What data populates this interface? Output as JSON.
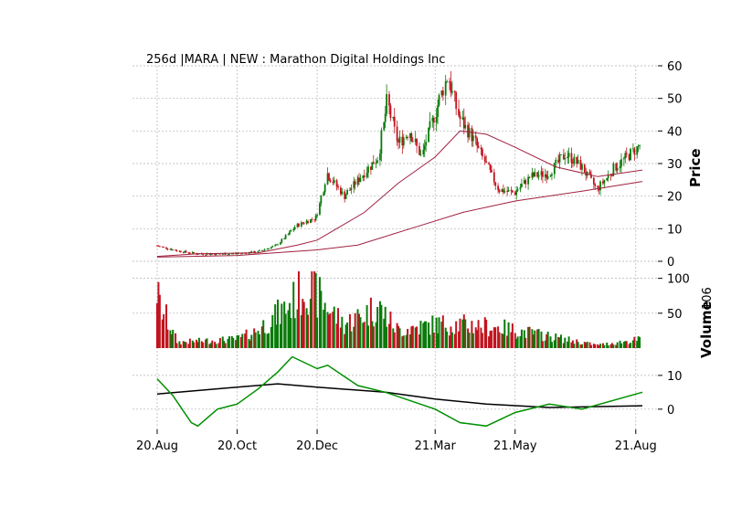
{
  "chart_data": {
    "type": "candlestick",
    "title": "256d |MARA | NEW : Marathon Digital Holdings Inc",
    "price_panel": {
      "ylabel": "Price",
      "ylim": [
        0,
        60
      ],
      "yticks": [
        "0",
        "10",
        "20",
        "30",
        "40",
        "50",
        "60"
      ],
      "ohlc_close_trace": [
        {
          "date": "2020-08-20",
          "close": 4.8
        },
        {
          "date": "2020-09-05",
          "close": 3.2
        },
        {
          "date": "2020-09-20",
          "close": 2.3
        },
        {
          "date": "2020-10-05",
          "close": 2.2
        },
        {
          "date": "2020-10-20",
          "close": 2.4
        },
        {
          "date": "2020-11-05",
          "close": 2.9
        },
        {
          "date": "2020-11-20",
          "close": 5.0
        },
        {
          "date": "2020-12-05",
          "close": 11.0
        },
        {
          "date": "2020-12-20",
          "close": 13.5
        },
        {
          "date": "2020-12-28",
          "close": 27.0
        },
        {
          "date": "2021-01-10",
          "close": 20.0
        },
        {
          "date": "2021-01-25",
          "close": 27.0
        },
        {
          "date": "2021-02-05",
          "close": 32.0
        },
        {
          "date": "2021-02-12",
          "close": 49.0
        },
        {
          "date": "2021-02-20",
          "close": 36.0
        },
        {
          "date": "2021-03-01",
          "close": 40.0
        },
        {
          "date": "2021-03-10",
          "close": 32.0
        },
        {
          "date": "2021-03-20",
          "close": 45.0
        },
        {
          "date": "2021-03-30",
          "close": 57.0
        },
        {
          "date": "2021-04-08",
          "close": 44.0
        },
        {
          "date": "2021-04-18",
          "close": 38.0
        },
        {
          "date": "2021-04-28",
          "close": 30.0
        },
        {
          "date": "2021-05-08",
          "close": 22.0
        },
        {
          "date": "2021-05-20",
          "close": 21.0
        },
        {
          "date": "2021-06-01",
          "close": 26.0
        },
        {
          "date": "2021-06-15",
          "close": 27.0
        },
        {
          "date": "2021-06-28",
          "close": 33.0
        },
        {
          "date": "2021-07-10",
          "close": 29.0
        },
        {
          "date": "2021-07-22",
          "close": 22.0
        },
        {
          "date": "2021-08-05",
          "close": 29.0
        },
        {
          "date": "2021-08-25",
          "close": 36.0
        }
      ],
      "moving_average_long": [
        {
          "date": "2020-08-20",
          "value": 1.3
        },
        {
          "date": "2020-10-20",
          "value": 1.8
        },
        {
          "date": "2020-12-20",
          "value": 3.5
        },
        {
          "date": "2021-01-20",
          "value": 5.0
        },
        {
          "date": "2021-03-01",
          "value": 10.0
        },
        {
          "date": "2021-04-10",
          "value": 15.0
        },
        {
          "date": "2021-05-20",
          "value": 18.5
        },
        {
          "date": "2021-07-10",
          "value": 21.5
        },
        {
          "date": "2021-08-25",
          "value": 24.5
        }
      ],
      "moving_average_short": [
        {
          "date": "2020-08-20",
          "value": 1.5
        },
        {
          "date": "2020-09-20",
          "value": 2.3
        },
        {
          "date": "2020-11-05",
          "value": 2.6
        },
        {
          "date": "2020-12-05",
          "value": 5.0
        },
        {
          "date": "2020-12-20",
          "value": 6.5
        },
        {
          "date": "2021-01-25",
          "value": 15.0
        },
        {
          "date": "2021-02-20",
          "value": 24.0
        },
        {
          "date": "2021-03-20",
          "value": 32.0
        },
        {
          "date": "2021-04-08",
          "value": 40.0
        },
        {
          "date": "2021-04-28",
          "value": 39.0
        },
        {
          "date": "2021-05-20",
          "value": 35.0
        },
        {
          "date": "2021-06-20",
          "value": 29.0
        },
        {
          "date": "2021-07-22",
          "value": 26.0
        },
        {
          "date": "2021-08-25",
          "value": 28.0
        }
      ]
    },
    "volume_panel": {
      "ylabel": "Volume",
      "unit_label": "10^6",
      "ylim": [
        0,
        110
      ],
      "yticks": [
        "50",
        "100"
      ],
      "volume_trace": [
        {
          "date": "2020-08-20",
          "value": 100
        },
        {
          "date": "2020-08-22",
          "value": 75
        },
        {
          "date": "2020-09-05",
          "value": 10
        },
        {
          "date": "2020-10-20",
          "value": 15
        },
        {
          "date": "2020-11-01",
          "value": 25
        },
        {
          "date": "2020-11-20",
          "value": 55
        },
        {
          "date": "2020-12-05",
          "value": 85
        },
        {
          "date": "2020-12-12",
          "value": 110
        },
        {
          "date": "2020-12-20",
          "value": 90
        },
        {
          "date": "2021-01-10",
          "value": 40
        },
        {
          "date": "2021-02-05",
          "value": 70
        },
        {
          "date": "2021-02-20",
          "value": 30
        },
        {
          "date": "2021-03-20",
          "value": 40
        },
        {
          "date": "2021-04-08",
          "value": 40
        },
        {
          "date": "2021-05-08",
          "value": 35
        },
        {
          "date": "2021-06-15",
          "value": 20
        },
        {
          "date": "2021-07-22",
          "value": 5
        },
        {
          "date": "2021-08-25",
          "value": 15
        }
      ]
    },
    "indicator_panel": {
      "yticks": [
        "0",
        "10"
      ],
      "ylim": [
        -6,
        17
      ],
      "oscillator": [
        {
          "date": "2020-08-20",
          "value": 9
        },
        {
          "date": "2020-09-01",
          "value": 4
        },
        {
          "date": "2020-09-15",
          "value": -4
        },
        {
          "date": "2020-09-20",
          "value": -5
        },
        {
          "date": "2020-10-05",
          "value": 0
        },
        {
          "date": "2020-10-20",
          "value": 1.5
        },
        {
          "date": "2020-11-05",
          "value": 6
        },
        {
          "date": "2020-11-20",
          "value": 11
        },
        {
          "date": "2020-12-01",
          "value": 15.5
        },
        {
          "date": "2020-12-20",
          "value": 12
        },
        {
          "date": "2020-12-28",
          "value": 13
        },
        {
          "date": "2021-01-20",
          "value": 7
        },
        {
          "date": "2021-02-10",
          "value": 5
        },
        {
          "date": "2021-03-01",
          "value": 2.5
        },
        {
          "date": "2021-03-20",
          "value": 0
        },
        {
          "date": "2021-04-08",
          "value": -4
        },
        {
          "date": "2021-04-28",
          "value": -5
        },
        {
          "date": "2021-05-20",
          "value": -1
        },
        {
          "date": "2021-06-15",
          "value": 1.5
        },
        {
          "date": "2021-07-10",
          "value": 0
        },
        {
          "date": "2021-08-25",
          "value": 5
        }
      ],
      "signal": [
        {
          "date": "2020-08-20",
          "value": 4.5
        },
        {
          "date": "2020-10-20",
          "value": 6.5
        },
        {
          "date": "2020-11-20",
          "value": 7.5
        },
        {
          "date": "2020-12-20",
          "value": 6.5
        },
        {
          "date": "2021-02-10",
          "value": 5
        },
        {
          "date": "2021-03-20",
          "value": 3
        },
        {
          "date": "2021-04-28",
          "value": 1.5
        },
        {
          "date": "2021-06-15",
          "value": 0.5
        },
        {
          "date": "2021-08-25",
          "value": 1
        }
      ]
    },
    "x_ticks": [
      "20.Aug",
      "20.Oct",
      "20.Dec",
      "21.Mar",
      "21.May",
      "21.Aug"
    ],
    "x_tick_dates": [
      "2020-08-20",
      "2020-10-20",
      "2020-12-20",
      "2021-03-20",
      "2021-05-20",
      "2021-08-20"
    ],
    "xlim": [
      "2020-08-20",
      "2021-08-28"
    ],
    "grid": true,
    "colors": {
      "up": "#0a7a0a",
      "down": "#c0141e",
      "ma": "#a02040",
      "oscillator": "#009000",
      "signal": "#000000",
      "grid": "#b0b0b0"
    }
  }
}
